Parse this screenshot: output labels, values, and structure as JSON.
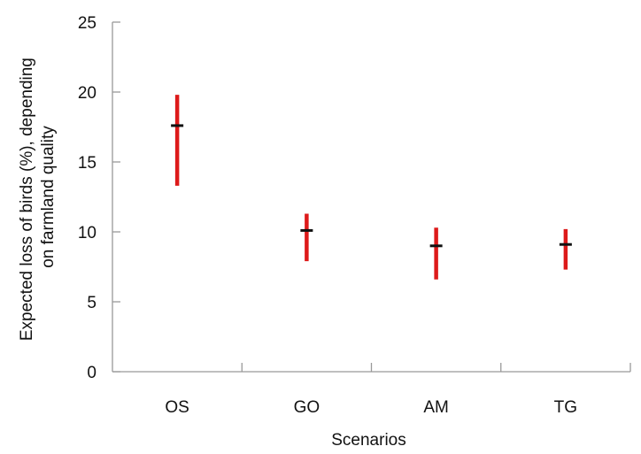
{
  "colors": {
    "range": "#dd1a1a",
    "mean": "#111111",
    "axis": "#999999"
  },
  "chart_data": {
    "type": "scatter",
    "subtype": "range-with-mean",
    "title": "",
    "xlabel": "Scenarios",
    "ylabel_lines": [
      "Expected loss of birds (%), depending",
      "on farmland quality"
    ],
    "ylim": [
      0,
      25
    ],
    "yticks": [
      0,
      5,
      10,
      15,
      20,
      25
    ],
    "grid": false,
    "legend": "none",
    "categories": [
      "OS",
      "GO",
      "AM",
      "TG"
    ],
    "series": [
      {
        "mean": [
          17.6,
          10.1,
          9.0,
          9.1
        ],
        "low": [
          13.3,
          7.9,
          6.6,
          7.3
        ],
        "high": [
          19.8,
          11.3,
          10.3,
          10.2
        ]
      }
    ]
  }
}
